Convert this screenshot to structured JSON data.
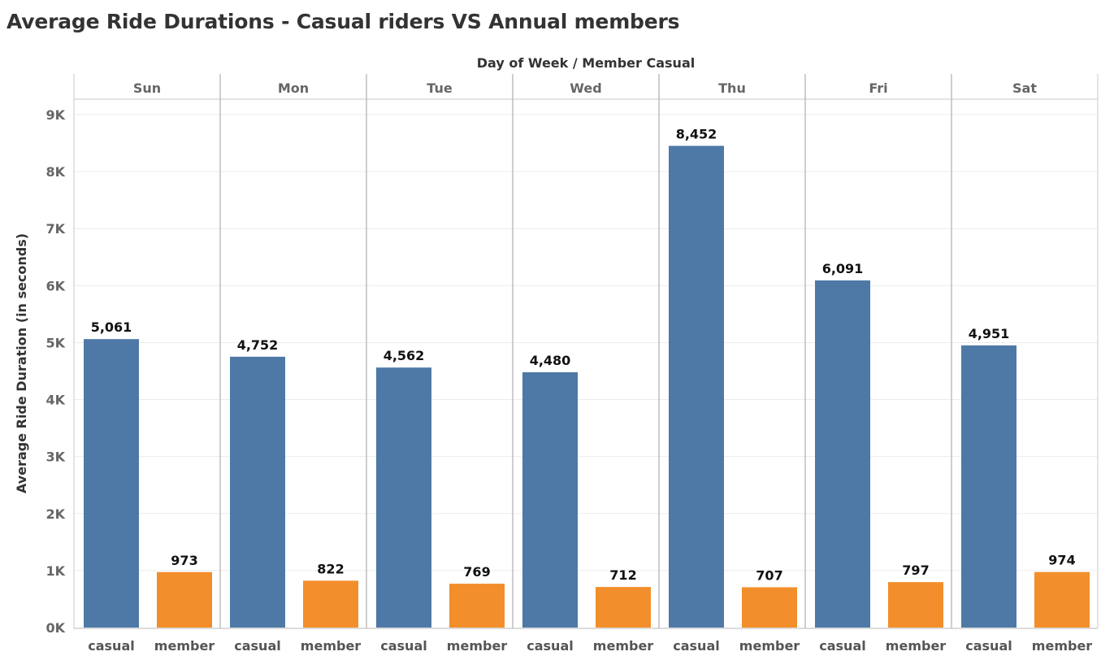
{
  "chart_data": {
    "type": "bar",
    "title": "Average Ride Durations - Casual riders VS Annual members",
    "header": "Day of Week  /  Member Casual",
    "ylabel": "Average Ride Duration (in seconds)",
    "categories": [
      "Sun",
      "Mon",
      "Tue",
      "Wed",
      "Thu",
      "Fri",
      "Sat"
    ],
    "series": [
      {
        "name": "casual",
        "color": "#4e79a7",
        "values": [
          5061,
          4752,
          4562,
          4480,
          8452,
          6091,
          4951
        ]
      },
      {
        "name": "member",
        "color": "#f28e2b",
        "values": [
          973,
          822,
          769,
          712,
          707,
          797,
          974
        ]
      }
    ],
    "ylim": [
      0,
      9000
    ],
    "yticks": [
      0,
      1000,
      2000,
      3000,
      4000,
      5000,
      6000,
      7000,
      8000,
      9000
    ],
    "ytick_labels": [
      "0K",
      "1K",
      "2K",
      "3K",
      "4K",
      "5K",
      "6K",
      "7K",
      "8K",
      "9K"
    ],
    "data_labels": [
      [
        "5,061",
        "4,752",
        "4,562",
        "4,480",
        "8,452",
        "6,091",
        "4,951"
      ],
      [
        "973",
        "822",
        "769",
        "712",
        "707",
        "797",
        "974"
      ]
    ],
    "grid": true
  }
}
